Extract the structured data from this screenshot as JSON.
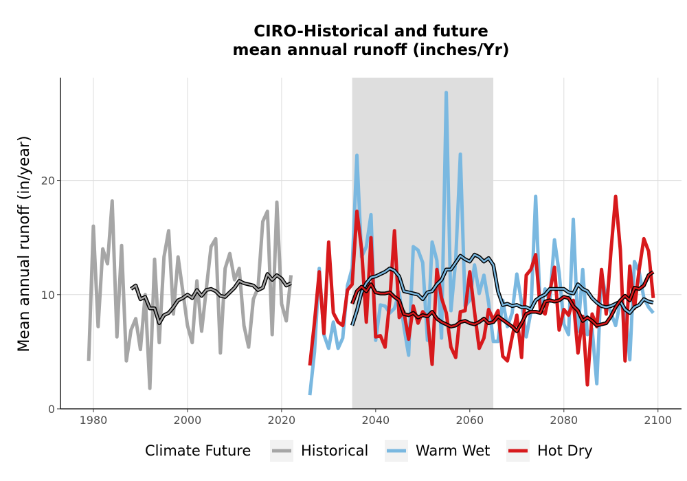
{
  "chart_data": {
    "type": "line",
    "title_line1": "CIRO-Historical and future",
    "title_line2": "mean annual runoff (inches/Yr)",
    "xlabel": "",
    "ylabel": "Mean annual runoff (in/year)",
    "xlim": [
      1973,
      2105
    ],
    "ylim": [
      0,
      29
    ],
    "x_ticks": [
      1980,
      2000,
      2020,
      2040,
      2060,
      2080,
      2100
    ],
    "y_ticks": [
      0,
      10,
      20
    ],
    "grid": true,
    "shaded_period": [
      2035,
      2065
    ],
    "legend": {
      "position": "bottom",
      "title": "Climate Future",
      "entries": [
        "Historical",
        "Warm Wet",
        "Hot Dry"
      ]
    },
    "colors": {
      "Historical": "#a6a6a6",
      "Warm Wet": "#7ab8e0",
      "Hot Dry": "#d7191c",
      "shade": "#dcdcdc"
    },
    "series": [
      {
        "name": "Historical",
        "x": [
          1979,
          1980,
          1981,
          1982,
          1983,
          1984,
          1985,
          1986,
          1987,
          1988,
          1989,
          1990,
          1991,
          1992,
          1993,
          1994,
          1995,
          1996,
          1997,
          1998,
          1999,
          2000,
          2001,
          2002,
          2003,
          2004,
          2005,
          2006,
          2007,
          2008,
          2009,
          2010,
          2011,
          2012,
          2013,
          2014,
          2015,
          2016,
          2017,
          2018,
          2019,
          2020,
          2021,
          2022
        ],
        "y": [
          4.2,
          16.0,
          7.2,
          14.0,
          12.7,
          18.2,
          6.3,
          14.3,
          4.2,
          6.9,
          7.9,
          5.2,
          10.0,
          1.8,
          13.1,
          5.8,
          13.3,
          15.6,
          8.3,
          13.3,
          10.3,
          7.3,
          5.8,
          11.2,
          6.8,
          10.5,
          14.2,
          14.9,
          4.9,
          12.3,
          13.6,
          11.3,
          12.3,
          7.3,
          5.4,
          9.6,
          10.6,
          16.4,
          17.3,
          6.5,
          18.1,
          9.2,
          7.7,
          11.7
        ]
      },
      {
        "name": "Historical smoothed",
        "x": [
          1988,
          1989,
          1990,
          1991,
          1992,
          1993,
          1994,
          1995,
          1996,
          1997,
          1998,
          1999,
          2000,
          2001,
          2002,
          2003,
          2004,
          2005,
          2006,
          2007,
          2008,
          2009,
          2010,
          2011,
          2012,
          2013,
          2014,
          2015,
          2016,
          2017,
          2018,
          2019,
          2020,
          2021,
          2022
        ],
        "y": [
          10.5,
          10.8,
          9.6,
          9.8,
          8.8,
          8.8,
          7.5,
          8.2,
          8.4,
          8.9,
          9.5,
          9.7,
          10.0,
          9.7,
          10.4,
          9.9,
          10.4,
          10.5,
          10.3,
          9.9,
          9.8,
          10.2,
          10.6,
          11.2,
          11.0,
          10.9,
          10.8,
          10.4,
          10.6,
          11.8,
          11.3,
          11.7,
          11.4,
          10.8,
          11.0
        ]
      },
      {
        "name": "Warm Wet",
        "x": [
          2026,
          2027,
          2028,
          2029,
          2030,
          2031,
          2032,
          2033,
          2034,
          2035,
          2036,
          2037,
          2038,
          2039,
          2040,
          2041,
          2042,
          2043,
          2044,
          2045,
          2046,
          2047,
          2048,
          2049,
          2050,
          2051,
          2052,
          2053,
          2054,
          2055,
          2056,
          2057,
          2058,
          2059,
          2060,
          2061,
          2062,
          2063,
          2064,
          2065,
          2066,
          2067,
          2068,
          2069,
          2070,
          2071,
          2072,
          2073,
          2074,
          2075,
          2076,
          2077,
          2078,
          2079,
          2080,
          2081,
          2082,
          2083,
          2084,
          2085,
          2086,
          2087,
          2088,
          2089,
          2090,
          2091,
          2092,
          2093,
          2094,
          2095,
          2096,
          2097,
          2098,
          2099
        ],
        "y": [
          1.2,
          5.0,
          12.3,
          6.5,
          5.3,
          7.6,
          5.3,
          6.2,
          10.8,
          12.3,
          22.2,
          13.3,
          14.2,
          17.0,
          6.0,
          9.1,
          9.0,
          8.4,
          8.8,
          10.2,
          7.2,
          4.7,
          14.2,
          13.9,
          12.8,
          6.0,
          14.6,
          13.0,
          6.2,
          27.7,
          8.6,
          13.0,
          22.3,
          9.0,
          9.5,
          12.6,
          10.1,
          11.7,
          9.3,
          5.9,
          5.9,
          9.5,
          7.2,
          8.4,
          11.8,
          9.3,
          6.3,
          8.5,
          18.6,
          8.5,
          10.5,
          9.4,
          14.8,
          11.9,
          7.4,
          6.5,
          16.6,
          6.8,
          12.2,
          6.5,
          7.0,
          2.2,
          12.0,
          9.6,
          8.4,
          7.3,
          9.4,
          8.8,
          4.3,
          12.9,
          12.0,
          9.7,
          8.9,
          8.4
        ]
      },
      {
        "name": "Warm Wet smoothed",
        "x": [
          2035,
          2036,
          2037,
          2038,
          2039,
          2040,
          2041,
          2042,
          2043,
          2044,
          2045,
          2046,
          2047,
          2048,
          2049,
          2050,
          2051,
          2052,
          2053,
          2054,
          2055,
          2056,
          2057,
          2058,
          2059,
          2060,
          2061,
          2062,
          2063,
          2064,
          2065,
          2066,
          2067,
          2068,
          2069,
          2070,
          2071,
          2072,
          2073,
          2074,
          2075,
          2076,
          2077,
          2078,
          2079,
          2080,
          2081,
          2082,
          2083,
          2084,
          2085,
          2086,
          2087,
          2088,
          2089,
          2090,
          2091,
          2092,
          2093,
          2094,
          2095,
          2096,
          2097,
          2098,
          2099
        ],
        "y": [
          7.3,
          8.6,
          10.2,
          11.0,
          11.5,
          11.6,
          11.8,
          12.0,
          12.3,
          12.1,
          11.6,
          10.3,
          10.2,
          10.1,
          10.0,
          9.6,
          10.2,
          10.3,
          10.9,
          11.3,
          12.2,
          12.2,
          12.8,
          13.4,
          13.1,
          12.9,
          13.5,
          13.3,
          12.9,
          13.2,
          12.6,
          10.3,
          9.1,
          9.2,
          9.0,
          9.1,
          8.9,
          8.9,
          8.7,
          9.5,
          9.8,
          10.0,
          10.5,
          10.5,
          10.5,
          10.5,
          10.2,
          10.1,
          10.9,
          10.5,
          10.3,
          9.7,
          9.3,
          9.0,
          8.9,
          9.0,
          9.2,
          9.4,
          8.7,
          8.4,
          8.9,
          9.1,
          9.6,
          9.4,
          9.3
        ]
      },
      {
        "name": "Hot Dry",
        "x": [
          2026,
          2027,
          2028,
          2029,
          2030,
          2031,
          2032,
          2033,
          2034,
          2035,
          2036,
          2037,
          2038,
          2039,
          2040,
          2041,
          2042,
          2043,
          2044,
          2045,
          2046,
          2047,
          2048,
          2049,
          2050,
          2051,
          2052,
          2053,
          2054,
          2055,
          2056,
          2057,
          2058,
          2059,
          2060,
          2061,
          2062,
          2063,
          2064,
          2065,
          2066,
          2067,
          2068,
          2069,
          2070,
          2071,
          2072,
          2073,
          2074,
          2075,
          2076,
          2077,
          2078,
          2079,
          2080,
          2081,
          2082,
          2083,
          2084,
          2085,
          2086,
          2087,
          2088,
          2089,
          2090,
          2091,
          2092,
          2093,
          2094,
          2095,
          2096,
          2097,
          2098,
          2099
        ],
        "y": [
          3.8,
          7.6,
          12.0,
          6.6,
          14.6,
          8.4,
          7.6,
          7.3,
          10.4,
          10.9,
          17.3,
          14.0,
          7.6,
          15.0,
          6.3,
          6.4,
          5.4,
          9.5,
          15.6,
          8.0,
          8.5,
          6.1,
          9.0,
          7.5,
          8.5,
          8.0,
          3.9,
          12.2,
          9.7,
          8.4,
          5.4,
          4.5,
          8.5,
          8.6,
          12.0,
          8.5,
          5.3,
          6.2,
          8.7,
          7.8,
          8.6,
          4.6,
          4.2,
          6.3,
          8.2,
          4.5,
          11.7,
          12.2,
          13.5,
          8.7,
          8.3,
          10.2,
          12.4,
          6.9,
          8.7,
          8.2,
          9.5,
          4.9,
          8.1,
          2.1,
          8.3,
          7.2,
          12.2,
          8.3,
          13.8,
          18.6,
          13.9,
          4.2,
          12.5,
          8.8,
          12.2,
          14.9,
          13.8,
          9.7
        ]
      },
      {
        "name": "Hot Dry smoothed",
        "x": [
          2035,
          2036,
          2037,
          2038,
          2039,
          2040,
          2041,
          2042,
          2043,
          2044,
          2045,
          2046,
          2047,
          2048,
          2049,
          2050,
          2051,
          2052,
          2053,
          2054,
          2055,
          2056,
          2057,
          2058,
          2059,
          2060,
          2061,
          2062,
          2063,
          2064,
          2065,
          2066,
          2067,
          2068,
          2069,
          2070,
          2071,
          2072,
          2073,
          2074,
          2075,
          2076,
          2077,
          2078,
          2079,
          2080,
          2081,
          2082,
          2083,
          2084,
          2085,
          2086,
          2087,
          2088,
          2089,
          2090,
          2091,
          2092,
          2093,
          2094,
          2095,
          2096,
          2097,
          2098,
          2099
        ],
        "y": [
          9.2,
          10.3,
          10.7,
          10.3,
          10.9,
          10.2,
          10.1,
          10.1,
          10.2,
          9.8,
          9.5,
          8.3,
          8.2,
          8.4,
          8.0,
          8.2,
          8.1,
          8.5,
          7.9,
          7.6,
          7.4,
          7.2,
          7.3,
          7.6,
          7.7,
          7.5,
          7.4,
          7.6,
          7.9,
          7.5,
          7.6,
          8.1,
          7.8,
          7.5,
          7.2,
          6.8,
          7.5,
          8.3,
          8.5,
          8.5,
          8.4,
          9.4,
          9.5,
          9.4,
          9.5,
          9.8,
          9.7,
          9.0,
          8.6,
          7.7,
          8.0,
          7.7,
          7.3,
          7.4,
          7.5,
          8.1,
          8.9,
          9.5,
          9.9,
          9.5,
          10.6,
          10.5,
          10.8,
          11.7,
          12.0
        ]
      }
    ]
  }
}
